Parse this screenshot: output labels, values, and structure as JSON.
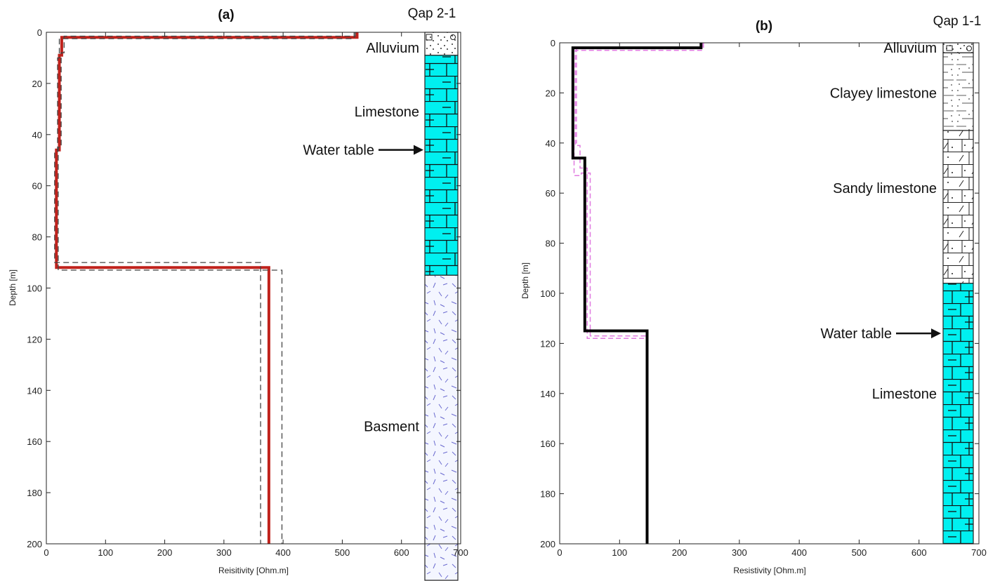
{
  "colors": {
    "fit_a": "#c0221c",
    "bound": "#444444",
    "fit_b": "#000000",
    "bound_b": "#e07ae0",
    "limestone": "#00f0f0",
    "basement_dash": "#6a6ad0"
  },
  "chart_data": [
    {
      "type": "line",
      "panel_label": "(a)",
      "title": "Qap 2-1",
      "xlabel": "Reisitivity [Ohm.m]",
      "ylabel": "Depth [m]",
      "xlim": [
        0,
        700
      ],
      "ylim": [
        0,
        200
      ],
      "y_inverted": true,
      "x_ticks": [
        "0",
        "100",
        "200",
        "300",
        "400",
        "500",
        "600",
        "700"
      ],
      "y_ticks": [
        "0",
        "20",
        "40",
        "60",
        "80",
        "100",
        "120",
        "140",
        "160",
        "180",
        "200"
      ],
      "series": [
        {
          "role": "model",
          "x": [
            525,
            525,
            26,
            26,
            22,
            22,
            17,
            17,
            376,
            376
          ],
          "y": [
            0,
            2,
            2,
            9,
            9,
            46,
            46,
            92,
            92,
            200
          ]
        },
        {
          "role": "bound_low",
          "x": [
            520,
            520,
            22,
            22,
            19,
            19,
            14,
            14,
            362,
            362
          ],
          "y": [
            0,
            2.5,
            2.5,
            10,
            10,
            47,
            47,
            90,
            90,
            200
          ]
        },
        {
          "role": "bound_high",
          "x": [
            522,
            522,
            30,
            30,
            25,
            25,
            20,
            20,
            398,
            398
          ],
          "y": [
            0,
            1.5,
            1.5,
            8,
            8,
            45,
            45,
            93,
            93,
            200
          ]
        }
      ],
      "lithology": [
        {
          "name": "Alluvium",
          "top": 0,
          "bottom": 9,
          "pattern": "alluvium"
        },
        {
          "name": "Limestone",
          "top": 9,
          "bottom": 95,
          "pattern": "limestone"
        },
        {
          "name": "Basment",
          "top": 95,
          "bottom": 215,
          "pattern": "basement"
        }
      ],
      "annotations": [
        {
          "text": "Alluvium",
          "depth": 6
        },
        {
          "text": "Limestone",
          "depth": 31
        },
        {
          "text": "Water table",
          "depth": 46,
          "arrow": true
        },
        {
          "text": "Basment",
          "depth": 154
        }
      ]
    },
    {
      "type": "line",
      "panel_label": "(b)",
      "title": "Qap 1-1",
      "xlabel": "Resistivity [Ohm.m]",
      "ylabel": "Depth [m]",
      "xlim": [
        0,
        700
      ],
      "ylim": [
        0,
        200
      ],
      "y_inverted": true,
      "x_ticks": [
        "0",
        "100",
        "200",
        "300",
        "400",
        "500",
        "600",
        "700"
      ],
      "y_ticks": [
        "0",
        "20",
        "40",
        "60",
        "80",
        "100",
        "120",
        "140",
        "160",
        "180",
        "200"
      ],
      "series": [
        {
          "role": "bound_low",
          "x": [
            240,
            240,
            28,
            28,
            24,
            24,
            36,
            36,
            51,
            51,
            147,
            147
          ],
          "y": [
            0,
            2,
            2,
            40,
            40,
            53,
            53,
            52,
            52,
            117,
            117,
            200
          ]
        },
        {
          "role": "bound_high",
          "x": [
            238,
            238,
            26,
            26,
            34,
            34,
            46,
            46,
            145,
            145
          ],
          "y": [
            0,
            3,
            3,
            41,
            41,
            50,
            50,
            118,
            118,
            200
          ]
        },
        {
          "role": "model",
          "x": [
            236,
            236,
            22,
            22,
            42,
            42,
            146,
            146
          ],
          "y": [
            0,
            2,
            2,
            46,
            46,
            115,
            115,
            200
          ]
        }
      ],
      "lithology": [
        {
          "name": "Alluvium",
          "top": 0,
          "bottom": 4,
          "pattern": "alluvium"
        },
        {
          "name": "Clayey limestone",
          "top": 4,
          "bottom": 35,
          "pattern": "clayey"
        },
        {
          "name": "Sandy limestone",
          "top": 35,
          "bottom": 96,
          "pattern": "sandy"
        },
        {
          "name": "Limestone",
          "top": 96,
          "bottom": 200,
          "pattern": "limestone"
        }
      ],
      "annotations": [
        {
          "text": "Alluvium",
          "depth": 2
        },
        {
          "text": "Clayey limestone",
          "depth": 20
        },
        {
          "text": "Sandy limestone",
          "depth": 58
        },
        {
          "text": "Water table",
          "depth": 116,
          "arrow": true
        },
        {
          "text": "Limestone",
          "depth": 140
        }
      ]
    }
  ]
}
